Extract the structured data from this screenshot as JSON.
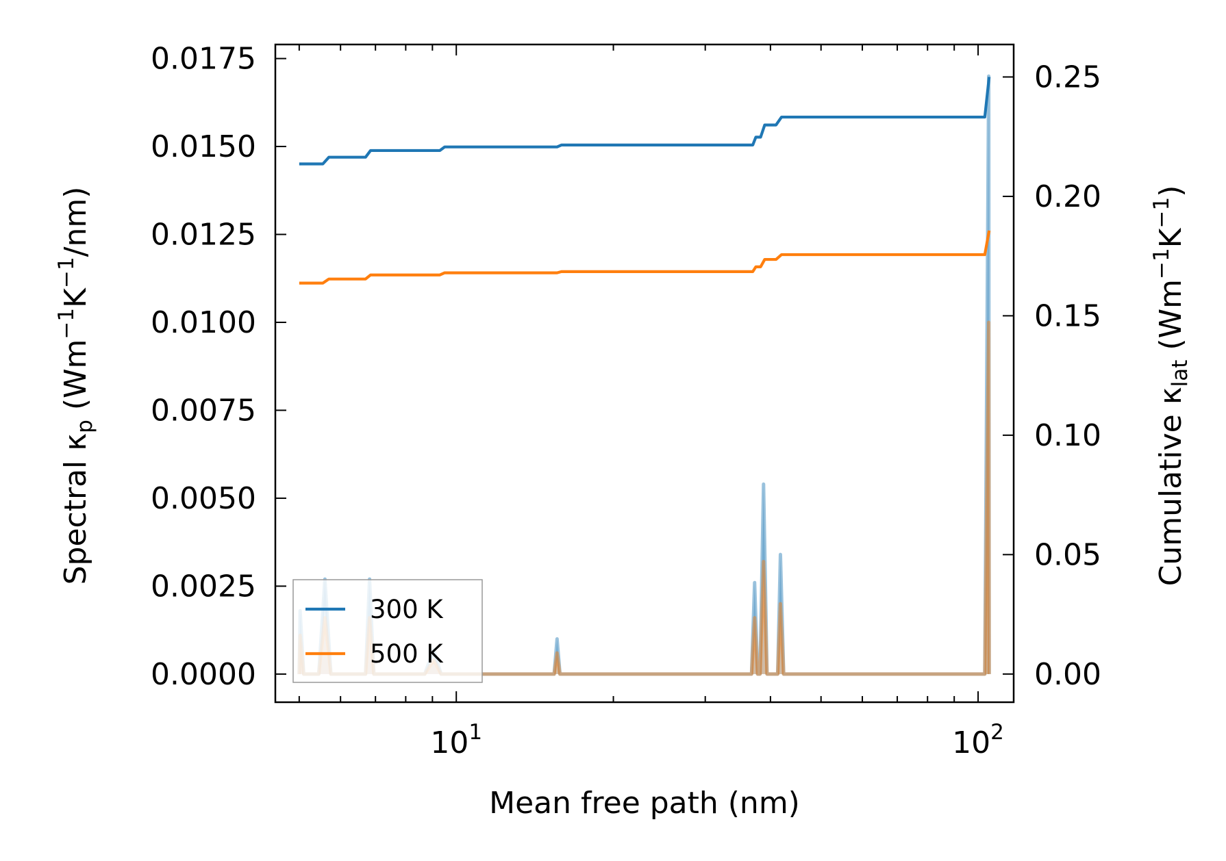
{
  "chart_data": {
    "type": "line",
    "title": "",
    "xlabel": "Mean free path (nm)",
    "xscale": "log",
    "xlim": [
      4.5,
      117
    ],
    "x_ticks": [
      {
        "value": 10,
        "base": "10",
        "exp": "1"
      },
      {
        "value": 100,
        "base": "10",
        "exp": "2"
      }
    ],
    "left_axis": {
      "label_parts": {
        "pre": "Spectral κ",
        "sub": "p",
        "mid": " (Wm",
        "sup1": "−1",
        "k": "K",
        "sup2": "−1",
        "post": "/nm)"
      },
      "ylim": [
        -0.0008,
        0.0179
      ],
      "ticks": [
        {
          "value": 0.0,
          "label": "0.0000"
        },
        {
          "value": 0.0025,
          "label": "0.0025"
        },
        {
          "value": 0.005,
          "label": "0.0050"
        },
        {
          "value": 0.0075,
          "label": "0.0075"
        },
        {
          "value": 0.01,
          "label": "0.0100"
        },
        {
          "value": 0.0125,
          "label": "0.0125"
        },
        {
          "value": 0.015,
          "label": "0.0150"
        },
        {
          "value": 0.0175,
          "label": "0.0175"
        }
      ]
    },
    "right_axis": {
      "label_parts": {
        "pre": "Cumulative κ",
        "sub": "lat",
        "mid": " (Wm",
        "sup1": "−1",
        "k": "K",
        "sup2": "−1",
        "post": ")"
      },
      "ylim": [
        -0.0118,
        0.2636
      ],
      "ticks": [
        {
          "value": 0.0,
          "label": "0.00"
        },
        {
          "value": 0.05,
          "label": "0.05"
        },
        {
          "value": 0.1,
          "label": "0.10"
        },
        {
          "value": 0.15,
          "label": "0.15"
        },
        {
          "value": 0.2,
          "label": "0.20"
        },
        {
          "value": 0.25,
          "label": "0.25"
        }
      ]
    },
    "legend": {
      "position": "lower-left",
      "entries": [
        "300 K",
        "500 K"
      ]
    },
    "colors": {
      "300 K": "#1f77b4",
      "500 K": "#ff7f0e"
    },
    "series": [
      {
        "name": "300 K",
        "axis": "right",
        "kind": "cumulative",
        "x": [
          5.0,
          5.55,
          5.7,
          6.7,
          6.85,
          9.3,
          9.5,
          15.6,
          15.9,
          37.0,
          37.5,
          38.3,
          39.0,
          41.0,
          42.0,
          103.0,
          105.0
        ],
        "y": [
          0.2136,
          0.2136,
          0.2164,
          0.2164,
          0.2192,
          0.2192,
          0.2207,
          0.2207,
          0.2215,
          0.2215,
          0.2248,
          0.2248,
          0.2299,
          0.2299,
          0.2332,
          0.2332,
          0.25
        ]
      },
      {
        "name": "500 K",
        "axis": "right",
        "kind": "cumulative",
        "x": [
          5.0,
          5.55,
          5.7,
          6.7,
          6.85,
          9.3,
          9.5,
          15.6,
          15.9,
          37.0,
          37.5,
          38.3,
          39.0,
          41.0,
          42.0,
          103.0,
          105.0
        ],
        "y": [
          0.1637,
          0.1637,
          0.1654,
          0.1654,
          0.1671,
          0.1671,
          0.168,
          0.168,
          0.1685,
          0.1685,
          0.1705,
          0.1705,
          0.1736,
          0.1736,
          0.1756,
          0.1756,
          0.1857
        ]
      },
      {
        "name": "300 K",
        "axis": "left",
        "kind": "spectral",
        "x": [
          5.0,
          5.02,
          5.1,
          5.45,
          5.6,
          5.75,
          6.7,
          6.82,
          6.95,
          8.7,
          9.05,
          9.35,
          15.4,
          15.6,
          15.8,
          36.8,
          37.3,
          37.8,
          38.2,
          38.8,
          39.4,
          41.3,
          41.8,
          42.4,
          103.0,
          104.8,
          105.0
        ],
        "y": [
          0.0,
          0.0018,
          0.0,
          0.0,
          0.0027,
          0.0,
          0.0,
          0.0027,
          0.0,
          0.0,
          0.0007,
          0.0,
          0.0,
          0.001,
          0.0,
          0.0,
          0.0026,
          0.0,
          0.0,
          0.0054,
          0.0,
          0.0,
          0.0034,
          0.0,
          0.0,
          0.017,
          0.0
        ]
      },
      {
        "name": "500 K",
        "axis": "left",
        "kind": "spectral",
        "x": [
          5.0,
          5.02,
          5.1,
          5.45,
          5.6,
          5.75,
          6.7,
          6.82,
          6.95,
          8.7,
          9.05,
          9.35,
          15.4,
          15.6,
          15.8,
          36.8,
          37.3,
          37.8,
          38.2,
          38.8,
          39.4,
          41.3,
          41.8,
          42.4,
          103.0,
          104.8,
          105.0
        ],
        "y": [
          0.0,
          0.0011,
          0.0,
          0.0,
          0.0016,
          0.0,
          0.0,
          0.0016,
          0.0,
          0.0,
          0.0004,
          0.0,
          0.0,
          0.0006,
          0.0,
          0.0,
          0.0016,
          0.0,
          0.0,
          0.0032,
          0.0,
          0.0,
          0.002,
          0.0,
          0.0,
          0.01,
          0.0
        ]
      }
    ]
  }
}
